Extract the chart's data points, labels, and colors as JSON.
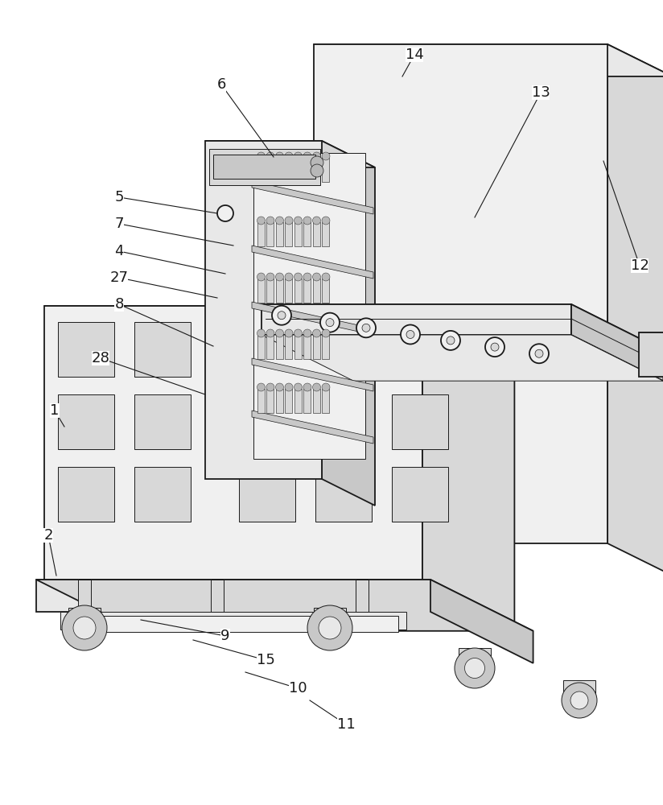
{
  "bg": "#ffffff",
  "lc": "#1a1a1a",
  "fill_white": "#ffffff",
  "fill_vlight": "#f0f0f0",
  "fill_light": "#e8e8e8",
  "fill_med": "#d8d8d8",
  "fill_dark": "#c8c8c8",
  "fill_darker": "#b8b8b8",
  "lw": 1.3,
  "lw_thin": 0.7,
  "fontsize": 13
}
